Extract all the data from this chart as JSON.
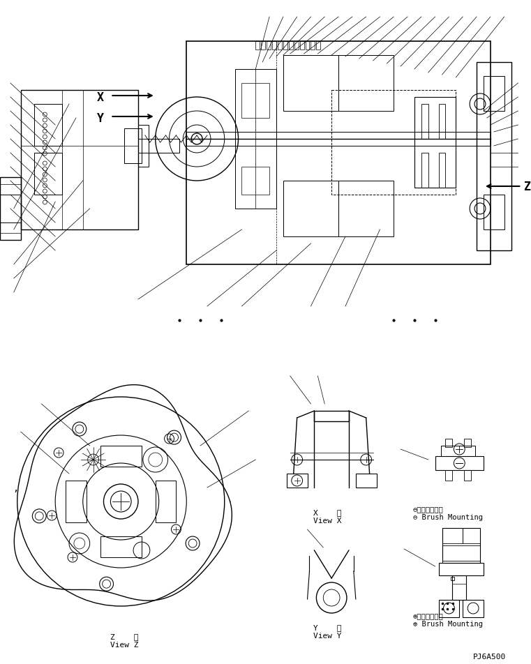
{
  "bg_color": "#ffffff",
  "line_color": "#000000",
  "fig_width": 7.61,
  "fig_height": 9.53,
  "labels": {
    "view_z_label": [
      "Z    視",
      "View Z"
    ],
    "view_x_label": [
      "X    視",
      "View X"
    ],
    "view_y_label": [
      "Y    視",
      "View Y"
    ],
    "brush_neg_jp": "⊖ブラシ取付法",
    "brush_neg_en": "⊖ Brush Mounting",
    "brush_pos_jp": "⊕ブラシ取付法",
    "brush_pos_en": "⊕ Brush Mounting",
    "part_no": "PJ6A500"
  }
}
